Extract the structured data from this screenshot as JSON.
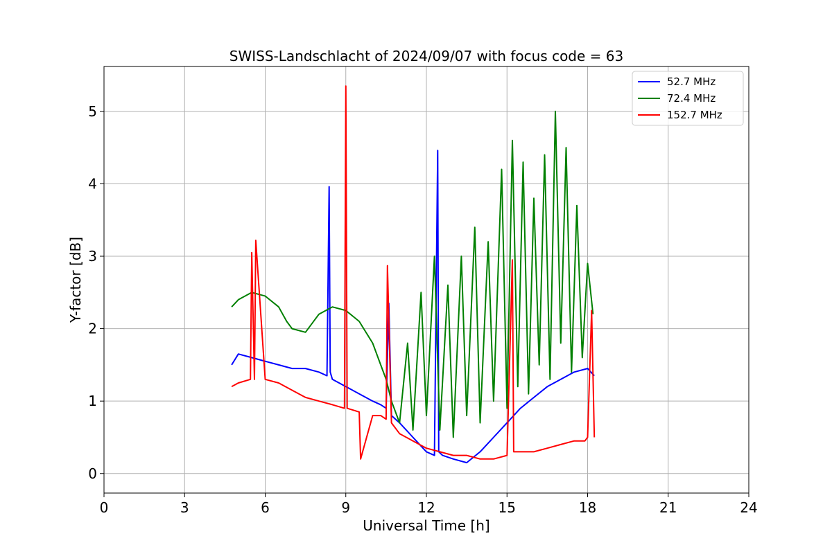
{
  "chart_data": {
    "type": "line",
    "title": "SWISS-Landschlacht of 2024/09/07 with focus code = 63",
    "xlabel": "Universal Time [h]",
    "ylabel": "Y-factor [dB]",
    "xlim": [
      0,
      24
    ],
    "ylim": [
      -0.27,
      5.62
    ],
    "xticks": [
      0,
      3,
      6,
      9,
      12,
      15,
      18,
      21,
      24
    ],
    "yticks": [
      0,
      1,
      2,
      3,
      4,
      5
    ],
    "grid": true,
    "legend_position": "top-right",
    "series": [
      {
        "name": "  52.7 MHz",
        "color": "#0000ff",
        "x": [
          4.75,
          5.0,
          5.5,
          6.0,
          6.5,
          7.0,
          7.5,
          8.0,
          8.3,
          8.38,
          8.42,
          8.5,
          9.0,
          9.5,
          10.0,
          10.3,
          10.5,
          10.6,
          10.7,
          11.0,
          11.5,
          12.0,
          12.3,
          12.42,
          12.46,
          12.6,
          13.0,
          13.5,
          14.0,
          14.5,
          15.0,
          15.5,
          16.0,
          16.5,
          17.0,
          17.5,
          18.0,
          18.25
        ],
        "y": [
          1.5,
          1.65,
          1.6,
          1.55,
          1.5,
          1.45,
          1.45,
          1.4,
          1.35,
          3.96,
          1.4,
          1.3,
          1.2,
          1.1,
          1.0,
          0.95,
          0.9,
          2.35,
          0.8,
          0.7,
          0.5,
          0.3,
          0.25,
          4.46,
          0.3,
          0.25,
          0.2,
          0.15,
          0.3,
          0.5,
          0.7,
          0.9,
          1.05,
          1.2,
          1.3,
          1.4,
          1.45,
          1.35
        ]
      },
      {
        "name": "  72.4 MHz",
        "color": "#008000",
        "x": [
          4.75,
          5.0,
          5.5,
          6.0,
          6.5,
          6.8,
          7.0,
          7.5,
          8.0,
          8.5,
          9.0,
          9.5,
          10.0,
          10.3,
          10.5,
          10.7,
          11.0,
          11.3,
          11.5,
          11.8,
          12.0,
          12.3,
          12.5,
          12.8,
          13.0,
          13.3,
          13.5,
          13.8,
          14.0,
          14.3,
          14.5,
          14.8,
          15.0,
          15.2,
          15.4,
          15.6,
          15.8,
          16.0,
          16.2,
          16.4,
          16.6,
          16.8,
          17.0,
          17.2,
          17.4,
          17.6,
          17.8,
          18.0,
          18.2
        ],
        "y": [
          2.3,
          2.4,
          2.5,
          2.45,
          2.3,
          2.1,
          2.0,
          1.95,
          2.2,
          2.3,
          2.25,
          2.1,
          1.8,
          1.5,
          1.3,
          1.0,
          0.7,
          1.8,
          0.6,
          2.5,
          0.8,
          3.0,
          0.6,
          2.6,
          0.5,
          3.0,
          0.8,
          3.4,
          0.7,
          3.2,
          1.0,
          4.2,
          0.9,
          4.6,
          1.2,
          4.3,
          1.1,
          3.8,
          1.5,
          4.4,
          1.3,
          5.0,
          1.8,
          4.5,
          1.4,
          3.7,
          1.6,
          2.9,
          2.2
        ]
      },
      {
        "name": "  152.7 MHz",
        "color": "#ff0000",
        "x": [
          4.75,
          5.0,
          5.45,
          5.5,
          5.6,
          5.65,
          6.0,
          6.5,
          7.0,
          7.5,
          8.0,
          8.5,
          8.95,
          9.0,
          9.05,
          9.5,
          9.55,
          10.0,
          10.3,
          10.5,
          10.55,
          10.7,
          11.0,
          11.5,
          12.0,
          12.5,
          13.0,
          13.5,
          14.0,
          14.5,
          15.0,
          15.2,
          15.25,
          15.5,
          16.0,
          16.5,
          17.0,
          17.5,
          17.9,
          18.0,
          18.15,
          18.25
        ],
        "y": [
          1.2,
          1.25,
          1.3,
          3.05,
          1.3,
          3.22,
          1.3,
          1.25,
          1.15,
          1.05,
          1.0,
          0.95,
          0.9,
          5.35,
          0.9,
          0.85,
          0.2,
          0.8,
          0.8,
          0.75,
          2.87,
          0.7,
          0.55,
          0.45,
          0.35,
          0.3,
          0.25,
          0.25,
          0.2,
          0.2,
          0.25,
          2.95,
          0.3,
          0.3,
          0.3,
          0.35,
          0.4,
          0.45,
          0.45,
          0.5,
          2.25,
          0.5
        ]
      }
    ]
  }
}
